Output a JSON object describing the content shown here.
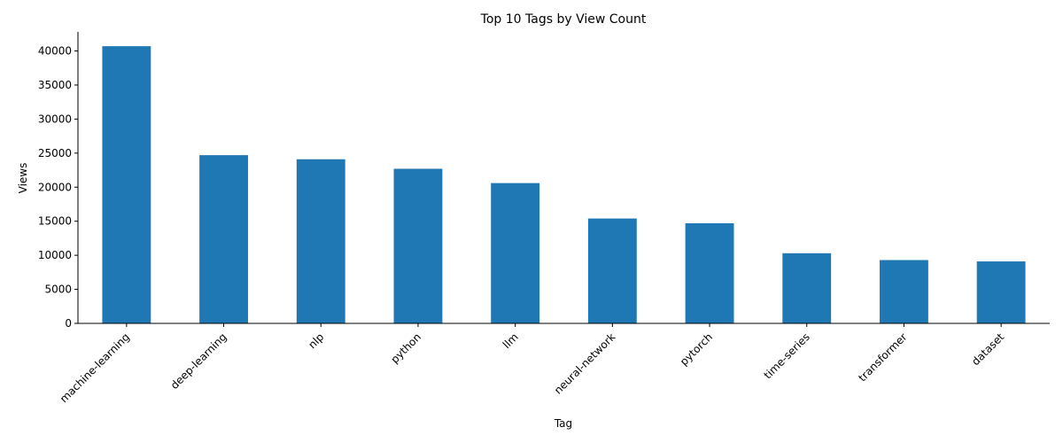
{
  "chart_data": {
    "type": "bar",
    "title": "Top 10 Tags by View Count",
    "xlabel": "Tag",
    "ylabel": "Views",
    "categories": [
      "machine-learning",
      "deep-learning",
      "nlp",
      "python",
      "llm",
      "neural-network",
      "pytorch",
      "time-series",
      "transformer",
      "dataset"
    ],
    "values": [
      40700,
      24700,
      24100,
      22700,
      20600,
      15400,
      14700,
      10300,
      9300,
      9100
    ],
    "ylim": [
      0,
      42800
    ],
    "yticks": [
      0,
      5000,
      10000,
      15000,
      20000,
      25000,
      30000,
      35000,
      40000
    ],
    "grid": false,
    "legend": "none",
    "bar_color": "#1f77b4",
    "axis_color": "#000000"
  }
}
